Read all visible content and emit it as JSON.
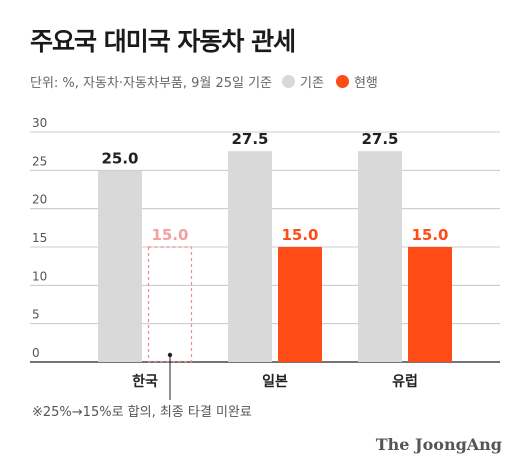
{
  "title": "주요국 대미국 자동차 관세",
  "subtitle": "단위: %, 자동차·자동차부품, 9월 25일 기준",
  "source": "The JoongAng",
  "footnote": "※25%→15%로 합의, 최종 타결 미완료",
  "colors": {
    "existing": "#d9d9d9",
    "current": "#ff4b16",
    "pending_outline": "#f08a8a",
    "pending_label": "#f4a0a0"
  },
  "chart_data": {
    "type": "bar",
    "title": "주요국 대미국 자동차 관세",
    "subtitle": "단위: %, 자동차·자동차부품, 9월 25일 기준",
    "categories": [
      "한국",
      "일본",
      "유럽"
    ],
    "ylim": [
      0,
      30
    ],
    "yticks": [
      0,
      5,
      10,
      15,
      20,
      25,
      30
    ],
    "grid": true,
    "legend_position": "top",
    "series": [
      {
        "name": "기존",
        "values": [
          25.0,
          27.5,
          27.5
        ],
        "labels": [
          "25.0",
          "27.5",
          "27.5"
        ]
      },
      {
        "name": "현행",
        "values": [
          15.0,
          15.0,
          15.0
        ],
        "labels": [
          "15.0",
          "15.0",
          "15.0"
        ]
      }
    ],
    "annotations": [
      {
        "category": "한국",
        "note": "현행 15.0 is drawn as a dashed outline (agreed, not finalized)"
      }
    ]
  }
}
